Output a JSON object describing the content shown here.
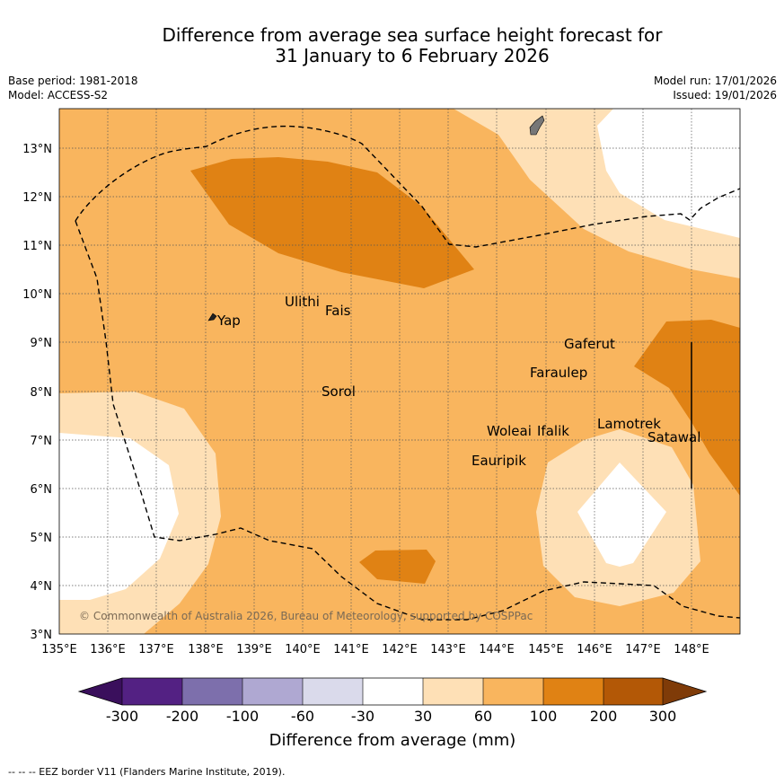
{
  "title": {
    "line1": "Difference from average sea surface height forecast for",
    "line2": "31 January to 6 February 2026"
  },
  "meta": {
    "base_period": "Base period: 1981-2018",
    "model": "Model: ACCESS-S2",
    "model_run": "Model run: 17/01/2026",
    "issued": "Issued: 19/01/2026"
  },
  "map": {
    "lat_ticks": [
      "13°N",
      "12°N",
      "11°N",
      "10°N",
      "9°N",
      "8°N",
      "7°N",
      "6°N",
      "5°N",
      "4°N",
      "3°N"
    ],
    "lon_ticks": [
      "135°E",
      "136°E",
      "137°E",
      "138°E",
      "139°E",
      "140°E",
      "141°E",
      "142°E",
      "143°E",
      "144°E",
      "145°E",
      "146°E",
      "147°E",
      "148°E"
    ],
    "islands": [
      "Yap",
      "Ulithi",
      "Fais",
      "Sorol",
      "Gaferut",
      "Faraulep",
      "Woleai",
      "Ifalik",
      "Lamotrek",
      "Satawal",
      "Eauripik"
    ],
    "copyright": "© Commonwealth of Australia 2026, Bureau of Meteorology, supported by COSPPac"
  },
  "colorbar": {
    "labels": [
      "-300",
      "-200",
      "-100",
      "-60",
      "-30",
      "30",
      "60",
      "100",
      "200",
      "300"
    ],
    "colors": [
      "#3a0f5c",
      "#532183",
      "#7d6fac",
      "#afa8d2",
      "#dadaeb",
      "#ffffff",
      "#fee0b6",
      "#f9b55e",
      "#e08214",
      "#b35806",
      "#7f3b08"
    ],
    "title": "Difference from average (mm)"
  },
  "footer": "--  --  -- EEZ border V11 (Flanders Marine Institute, 2019)."
}
